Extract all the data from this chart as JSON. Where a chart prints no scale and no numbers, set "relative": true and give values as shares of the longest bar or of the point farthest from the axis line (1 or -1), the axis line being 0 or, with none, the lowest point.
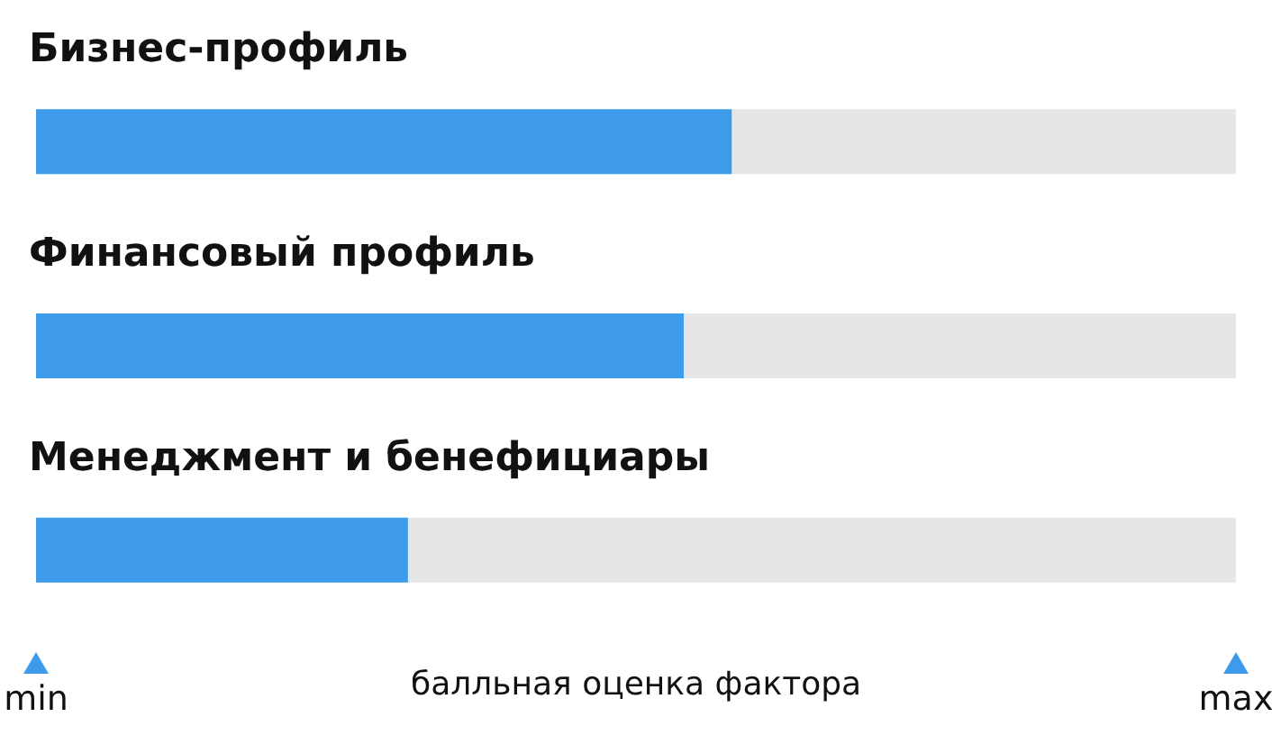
{
  "chart_data": {
    "type": "bar",
    "orientation": "horizontal",
    "relative": true,
    "stacked": true,
    "categories": [
      "Бизнес-профиль",
      "Финансовый профиль",
      "Менеджмент и бенефициары"
    ],
    "series": [
      {
        "color": "#3d9be9",
        "values": [
          0.58,
          0.54,
          0.31
        ]
      },
      {
        "color": "#e6e6e6",
        "values": [
          0.42,
          0.46,
          0.69
        ]
      }
    ],
    "xlabel": "балльная оценка фактора",
    "annotations": [
      "min",
      "max"
    ]
  }
}
